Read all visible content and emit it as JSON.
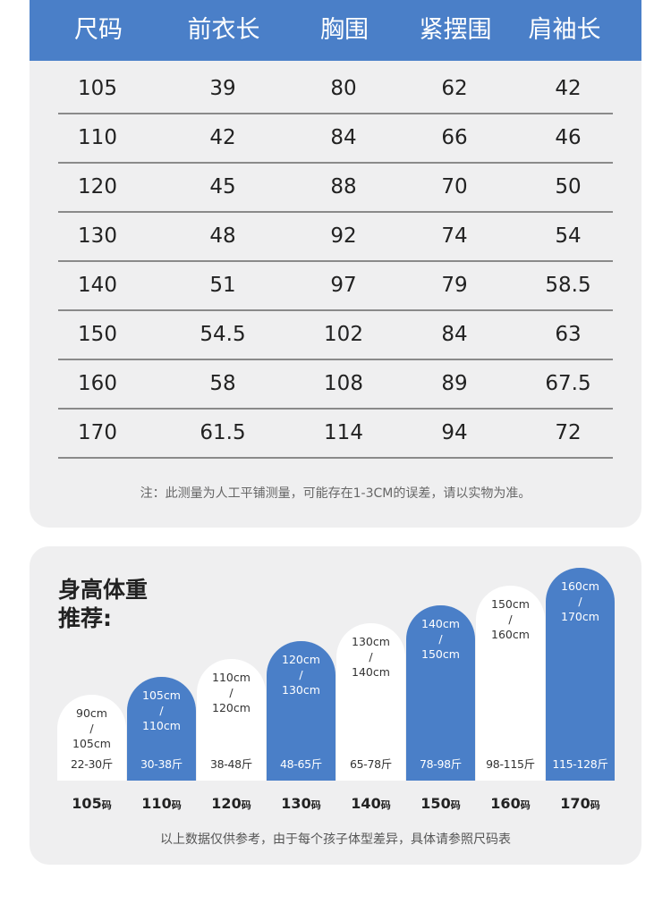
{
  "size_table": {
    "headers": [
      "尺码",
      "前衣长",
      "胸围",
      "紧摆围",
      "肩袖长"
    ],
    "rows": [
      [
        "105",
        "39",
        "80",
        "62",
        "42"
      ],
      [
        "110",
        "42",
        "84",
        "66",
        "46"
      ],
      [
        "120",
        "45",
        "88",
        "70",
        "50"
      ],
      [
        "130",
        "48",
        "92",
        "74",
        "54"
      ],
      [
        "140",
        "51",
        "97",
        "79",
        "58.5"
      ],
      [
        "150",
        "54.5",
        "102",
        "84",
        "63"
      ],
      [
        "160",
        "58",
        "108",
        "89",
        "67.5"
      ],
      [
        "170",
        "61.5",
        "114",
        "94",
        "72"
      ]
    ],
    "note": "注：此测量为人工平铺测量，可能存在1-3CM的误差，请以实物为准。"
  },
  "recommendation": {
    "title_line1": "身高体重",
    "title_line2": "推荐:",
    "colors": {
      "blue": "#4a7fc8",
      "white": "#ffffff",
      "card": "#efeff0"
    },
    "items": [
      {
        "height_from": "90cm",
        "sep": "/",
        "height_to": "105cm",
        "weight": "22-30斤",
        "size": "105",
        "unit": "码",
        "style": "white"
      },
      {
        "height_from": "105cm",
        "sep": "/",
        "height_to": "110cm",
        "weight": "30-38斤",
        "size": "110",
        "unit": "码",
        "style": "blue"
      },
      {
        "height_from": "110cm",
        "sep": "/",
        "height_to": "120cm",
        "weight": "38-48斤",
        "size": "120",
        "unit": "码",
        "style": "white"
      },
      {
        "height_from": "120cm",
        "sep": "/",
        "height_to": "130cm",
        "weight": "48-65斤",
        "size": "130",
        "unit": "码",
        "style": "blue"
      },
      {
        "height_from": "130cm",
        "sep": "/",
        "height_to": "140cm",
        "weight": "65-78斤",
        "size": "140",
        "unit": "码",
        "style": "white"
      },
      {
        "height_from": "140cm",
        "sep": "/",
        "height_to": "150cm",
        "weight": "78-98斤",
        "size": "150",
        "unit": "码",
        "style": "blue"
      },
      {
        "height_from": "150cm",
        "sep": "/",
        "height_to": "160cm",
        "weight": "98-115斤",
        "size": "160",
        "unit": "码",
        "style": "white"
      },
      {
        "height_from": "160cm",
        "sep": "/",
        "height_to": "170cm",
        "weight": "115-128斤",
        "size": "170",
        "unit": "码",
        "style": "blue"
      }
    ],
    "note": "以上数据仅供参考，由于每个孩子体型差异，具体请参照尺码表"
  }
}
